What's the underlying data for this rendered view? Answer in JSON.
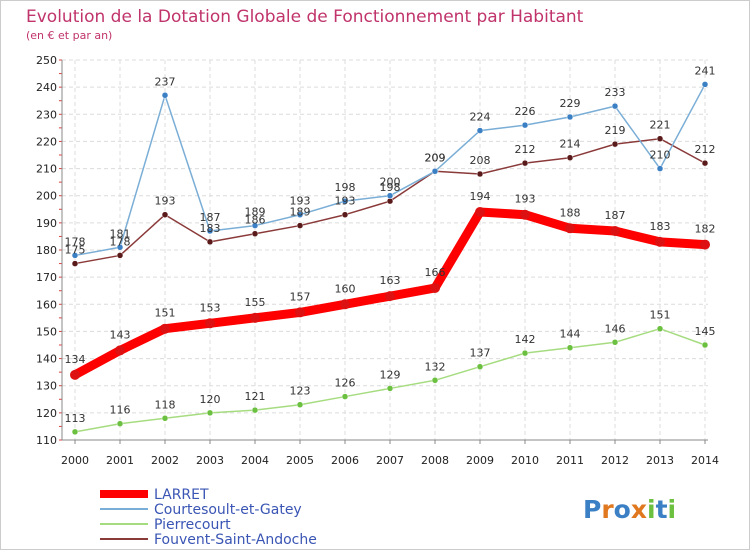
{
  "chart_data": {
    "type": "line",
    "title": "Evolution de la Dotation Globale de Fonctionnement par Habitant",
    "subtitle": "(en € et par an)",
    "xlabel": "",
    "ylabel": "",
    "x": [
      "2000",
      "2001",
      "2002",
      "2003",
      "2004",
      "2005",
      "2006",
      "2007",
      "2008",
      "2009",
      "2010",
      "2011",
      "2012",
      "2013",
      "2014"
    ],
    "ylim": [
      110,
      250
    ],
    "yticks": [
      "110",
      "120",
      "130",
      "140",
      "150",
      "160",
      "170",
      "180",
      "190",
      "200",
      "210",
      "220",
      "230",
      "240",
      "250"
    ],
    "grid": true,
    "legend_position": "bottom-left",
    "series": [
      {
        "name": "LARRET",
        "color": "#ff0000",
        "marker": "#dd1111",
        "values": [
          134,
          143,
          151,
          153,
          155,
          157,
          160,
          163,
          166,
          194,
          193,
          188,
          187,
          183,
          182
        ],
        "labels": [
          "134",
          "143",
          "151",
          "153",
          "155",
          "157",
          "160",
          "163",
          "166",
          "194",
          "193",
          "188",
          "187",
          "183",
          "182"
        ]
      },
      {
        "name": "Courtesoult-et-Gatey",
        "color": "#7aaed6",
        "marker": "#3b7fc4",
        "values": [
          178,
          181,
          237,
          187,
          189,
          193,
          198,
          200,
          209,
          224,
          226,
          229,
          233,
          210,
          241
        ],
        "labels": [
          "178",
          "181",
          "237",
          "187",
          "189",
          "193",
          "198",
          "200",
          "209",
          "224",
          "226",
          "229",
          "233",
          "210",
          "241"
        ]
      },
      {
        "name": "Pierrecourt",
        "color": "#a6dc80",
        "marker": "#6cc040",
        "values": [
          113,
          116,
          118,
          120,
          121,
          123,
          126,
          129,
          132,
          137,
          142,
          144,
          146,
          151,
          145
        ],
        "labels": [
          "113",
          "116",
          "118",
          "120",
          "121",
          "123",
          "126",
          "129",
          "132",
          "137",
          "142",
          "144",
          "146",
          "151",
          "145"
        ]
      },
      {
        "name": "Fouvent-Saint-Andoche",
        "color": "#8b3a3a",
        "marker": "#5a1a1a",
        "values": [
          175,
          178,
          193,
          183,
          186,
          189,
          193,
          198,
          209,
          208,
          212,
          214,
          219,
          221,
          212
        ],
        "labels": [
          "175",
          "178",
          "193",
          "183",
          "186",
          "189",
          "193",
          "198",
          "209",
          "208",
          "212",
          "214",
          "219",
          "221",
          "212"
        ]
      }
    ]
  },
  "logo": {
    "text": "Proxiti"
  }
}
